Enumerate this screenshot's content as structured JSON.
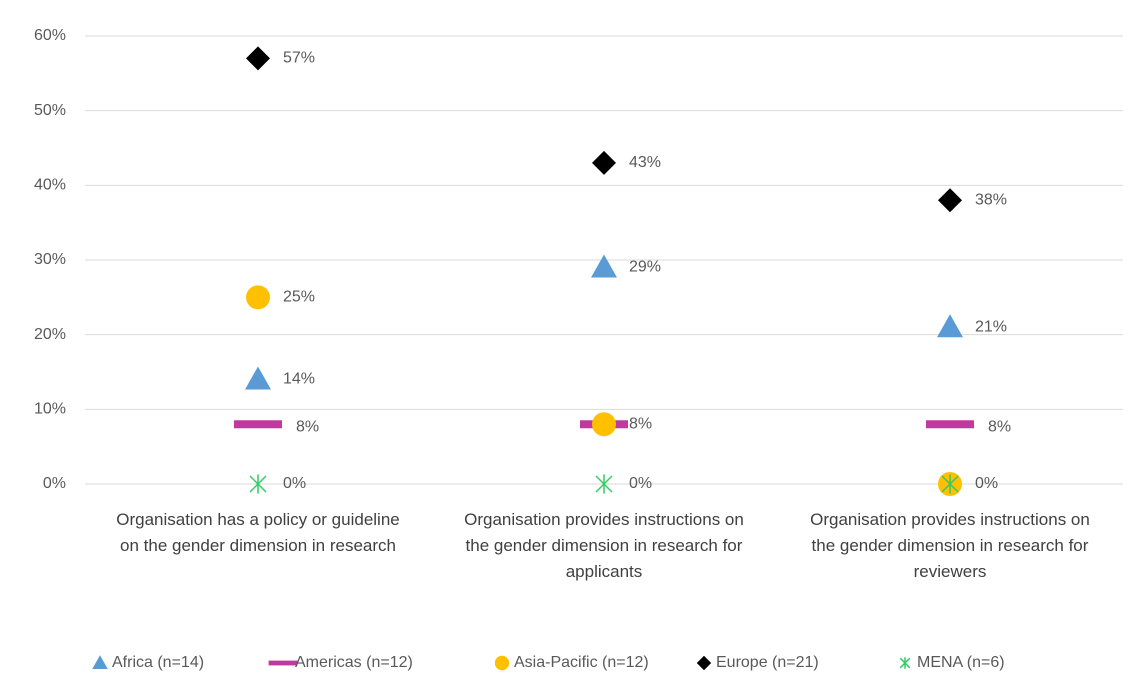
{
  "chart_data": {
    "type": "scatter-category",
    "categories": [
      "Organisation has a policy or guideline on the gender dimension in research",
      "Organisation provides instructions on the gender dimension in research for applicants",
      "Organisation provides instructions on the gender dimension in research for reviewers"
    ],
    "series": [
      {
        "name": "Africa (n=14)",
        "color": "#5b9bd5",
        "marker": "triangle",
        "values": [
          14,
          29,
          21
        ],
        "value_labels": [
          "14%",
          "29%",
          "21%"
        ]
      },
      {
        "name": "Americas (n=12)",
        "color": "#c0399f",
        "marker": "dash",
        "values": [
          8,
          8,
          8
        ],
        "value_labels": [
          "8%",
          null,
          "8%"
        ]
      },
      {
        "name": "Asia-Pacific (n=12)",
        "color": "#ffc000",
        "marker": "circle",
        "values": [
          25,
          8,
          0
        ],
        "value_labels": [
          "25%",
          "8%",
          null
        ]
      },
      {
        "name": "Europe (n=21)",
        "color": "#000000",
        "marker": "diamond",
        "values": [
          57,
          43,
          38
        ],
        "value_labels": [
          "57%",
          "43%",
          "38%"
        ]
      },
      {
        "name": "MENA (n=6)",
        "color": "#33cc66",
        "marker": "asterisk",
        "values": [
          0,
          0,
          0
        ],
        "value_labels": [
          "0%",
          "0%",
          "0%"
        ]
      }
    ],
    "ylim": [
      0,
      60
    ],
    "yticks": [
      {
        "value": 0,
        "label": "0%"
      },
      {
        "value": 10,
        "label": "10%"
      },
      {
        "value": 20,
        "label": "20%"
      },
      {
        "value": 30,
        "label": "30%"
      },
      {
        "value": 40,
        "label": "40%"
      },
      {
        "value": 50,
        "label": "50%"
      },
      {
        "value": 60,
        "label": "60%"
      }
    ],
    "grid": true,
    "legend": "bottom"
  }
}
